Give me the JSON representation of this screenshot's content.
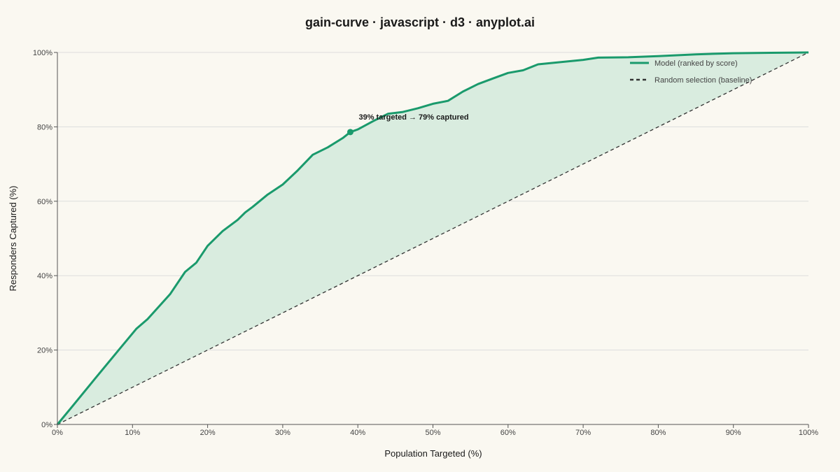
{
  "chart_data": {
    "type": "line",
    "title": "gain-curve · javascript · d3 · anyplot.ai",
    "xlabel": "Population Targeted (%)",
    "ylabel": "Responders Captured (%)",
    "xlim": [
      0,
      100
    ],
    "ylim": [
      0,
      100
    ],
    "x_ticks": [
      "0%",
      "10%",
      "20%",
      "30%",
      "40%",
      "50%",
      "60%",
      "70%",
      "80%",
      "90%",
      "100%"
    ],
    "y_ticks": [
      "0%",
      "20%",
      "40%",
      "60%",
      "80%",
      "100%"
    ],
    "grid": "horizontal",
    "legend_position": "top-right",
    "colors": {
      "model": "#1A9A6C",
      "area": "#D9ECDF",
      "baseline": "#333333",
      "grid": "#DDDDDD"
    },
    "series": [
      {
        "name": "Model (ranked by score)",
        "style": "solid",
        "x": [
          0,
          2,
          5,
          8,
          10.5,
          12,
          15,
          17,
          18.5,
          20,
          22,
          24,
          25,
          26,
          28,
          30,
          32,
          34,
          36,
          38,
          39,
          40,
          42,
          44,
          46,
          48,
          50,
          52,
          54,
          56,
          58,
          60,
          62,
          64,
          66,
          68,
          70,
          72,
          76,
          80,
          85,
          90,
          95,
          100
        ],
        "y": [
          0,
          4.9,
          12.3,
          19.6,
          25.7,
          28.3,
          35,
          41,
          43.5,
          48,
          52,
          55,
          57,
          58.5,
          61.8,
          64.5,
          68.3,
          72.5,
          74.5,
          77,
          78.6,
          79.3,
          81.5,
          83.5,
          84,
          85,
          86.2,
          87,
          89.5,
          91.5,
          93,
          94.5,
          95.2,
          96.8,
          97.2,
          97.6,
          98,
          98.6,
          98.7,
          99,
          99.5,
          99.8,
          99.9,
          100
        ]
      },
      {
        "name": "Random selection (baseline)",
        "style": "dashed",
        "x": [
          0,
          100
        ],
        "y": [
          0,
          100
        ]
      }
    ],
    "annotation": {
      "x": 39,
      "y": 78.6,
      "text": "39% targeted → 79% captured"
    }
  }
}
